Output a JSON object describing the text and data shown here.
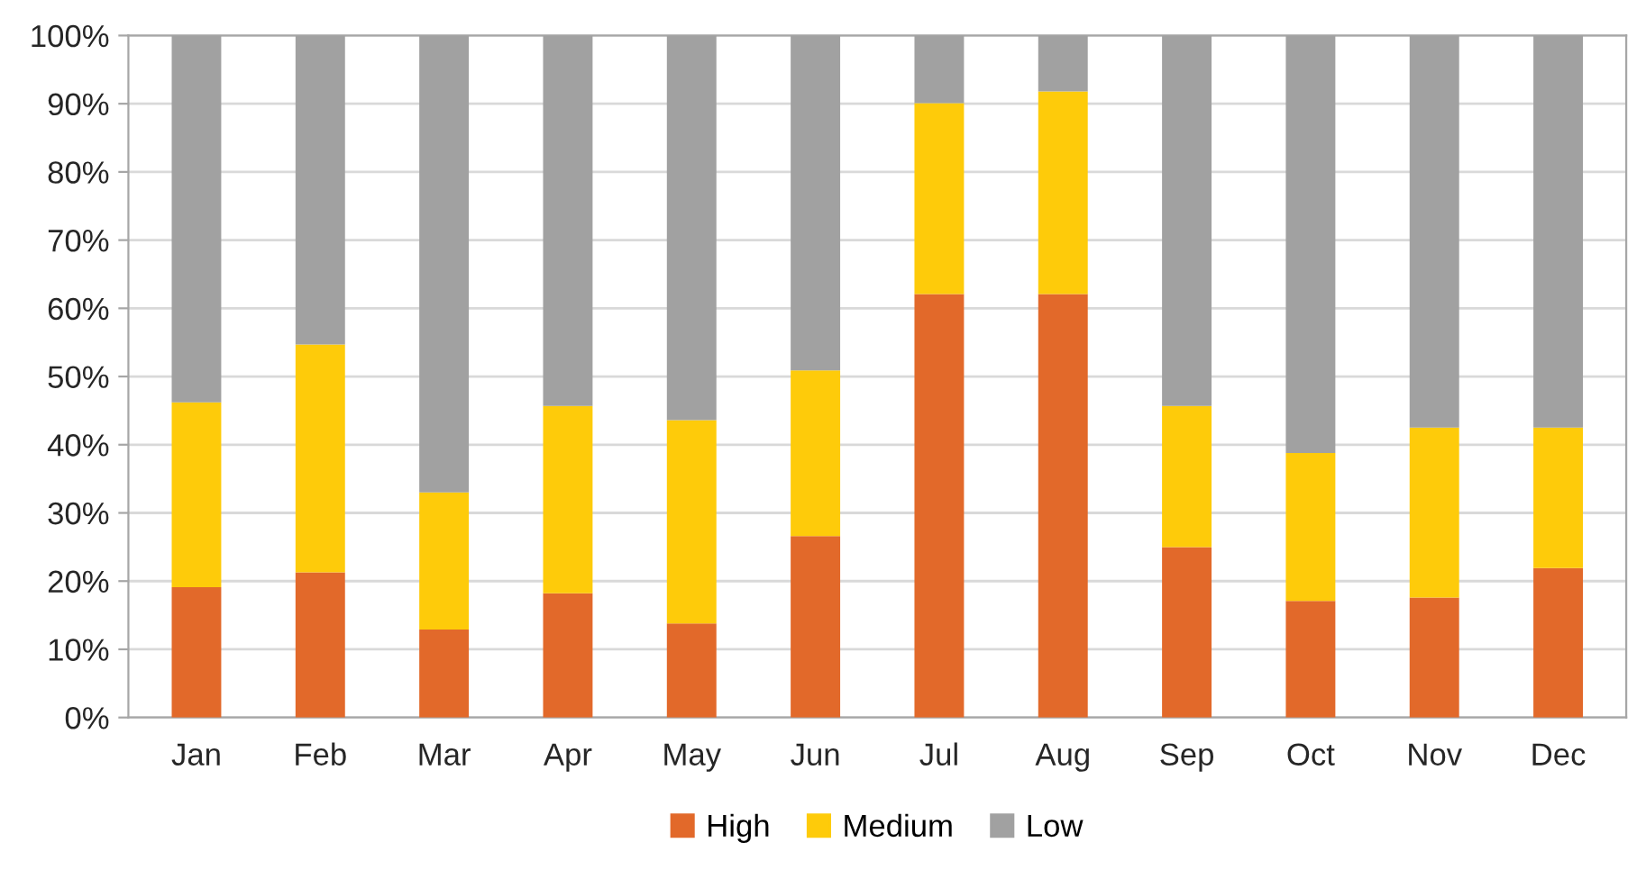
{
  "chart_data": {
    "type": "bar",
    "stacked": true,
    "categories": [
      "Jan",
      "Feb",
      "Mar",
      "Apr",
      "May",
      "Jun",
      "Jul",
      "Aug",
      "Sep",
      "Oct",
      "Nov",
      "Dec"
    ],
    "series": [
      {
        "name": "High",
        "color": "#e2692a",
        "values": [
          19.1,
          21.3,
          12.9,
          18.2,
          13.8,
          26.6,
          62.1,
          62.1,
          25.0,
          17.1,
          17.6,
          21.9
        ]
      },
      {
        "name": "Medium",
        "color": "#fecb0a",
        "values": [
          27.1,
          33.4,
          20.1,
          27.5,
          29.8,
          24.3,
          28.0,
          29.7,
          20.7,
          21.7,
          24.9,
          20.6
        ]
      },
      {
        "name": "Low",
        "color": "#a1a1a1",
        "values": [
          53.8,
          45.3,
          67.0,
          54.3,
          56.4,
          49.1,
          9.9,
          8.2,
          54.3,
          61.2,
          57.5,
          57.5
        ]
      }
    ],
    "ylim": [
      0,
      100
    ],
    "yticks": [
      {
        "value": 0,
        "label": "0%"
      },
      {
        "value": 10,
        "label": "10%"
      },
      {
        "value": 20,
        "label": "20%"
      },
      {
        "value": 30,
        "label": "30%"
      },
      {
        "value": 40,
        "label": "40%"
      },
      {
        "value": 50,
        "label": "50%"
      },
      {
        "value": 60,
        "label": "60%"
      },
      {
        "value": 70,
        "label": "70%"
      },
      {
        "value": 80,
        "label": "80%"
      },
      {
        "value": 90,
        "label": "90%"
      },
      {
        "value": 100,
        "label": "100%"
      }
    ],
    "grid": "y",
    "legend": "bottom"
  }
}
